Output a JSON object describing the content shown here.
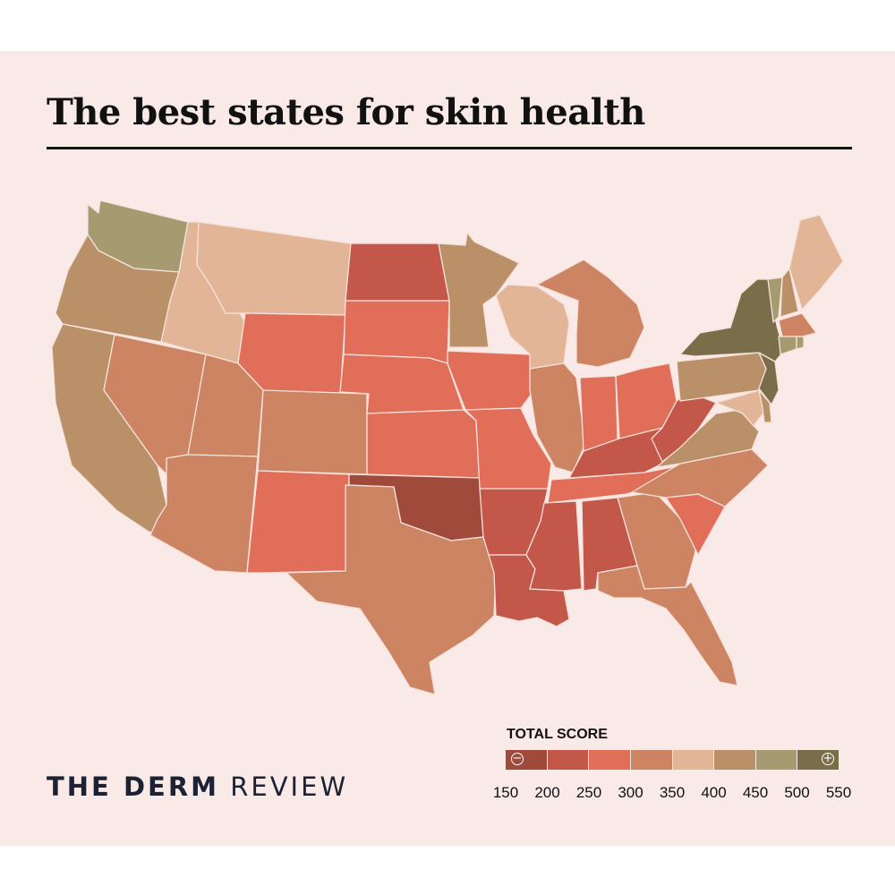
{
  "title": "The best states for skin health",
  "brand": {
    "part1": "THE DERM",
    "part2": "REVIEW"
  },
  "legend": {
    "title": "TOTAL SCORE",
    "ticks": [
      "150",
      "200",
      "250",
      "300",
      "350",
      "400",
      "450",
      "500",
      "550"
    ],
    "bins": [
      {
        "min": 150,
        "max": 200,
        "color": "#a04a3c"
      },
      {
        "min": 200,
        "max": 250,
        "color": "#c2574a"
      },
      {
        "min": 250,
        "max": 300,
        "color": "#e06e58"
      },
      {
        "min": 300,
        "max": 350,
        "color": "#cc8462"
      },
      {
        "min": 350,
        "max": 400,
        "color": "#e2b597"
      },
      {
        "min": 400,
        "max": 450,
        "color": "#b99068"
      },
      {
        "min": 450,
        "max": 500,
        "color": "#a69b70"
      },
      {
        "min": 500,
        "max": 550,
        "color": "#7a6e4a"
      }
    ],
    "low_icon": "minus-circle-icon",
    "high_icon": "plus-circle-icon"
  },
  "state_bins": {
    "WA": 6,
    "OR": 5,
    "CA": 5,
    "NV": 3,
    "ID": 4,
    "MT": 4,
    "WY": 2,
    "UT": 3,
    "AZ": 3,
    "CO": 3,
    "NM": 2,
    "ND": 1,
    "SD": 2,
    "NE": 2,
    "KS": 2,
    "OK": 0,
    "TX": 3,
    "MN": 5,
    "IA": 2,
    "MO": 2,
    "AR": 1,
    "LA": 1,
    "WI": 4,
    "IL": 3,
    "MI": 3,
    "IN": 2,
    "OH": 2,
    "KY": 1,
    "TN": 2,
    "MS": 1,
    "AL": 1,
    "GA": 3,
    "FL": 3,
    "SC": 2,
    "NC": 3,
    "VA": 5,
    "WV": 1,
    "PA": 5,
    "NY": 7,
    "VT": 6,
    "NH": 5,
    "ME": 4,
    "MA": 3,
    "CT": 6,
    "RI": 6,
    "NJ": 7,
    "DE": 5,
    "MD": 4
  },
  "map_colors": {
    "border": "#f6e2dc",
    "card": "#f9e9e7",
    "title_rule": "#141414"
  }
}
